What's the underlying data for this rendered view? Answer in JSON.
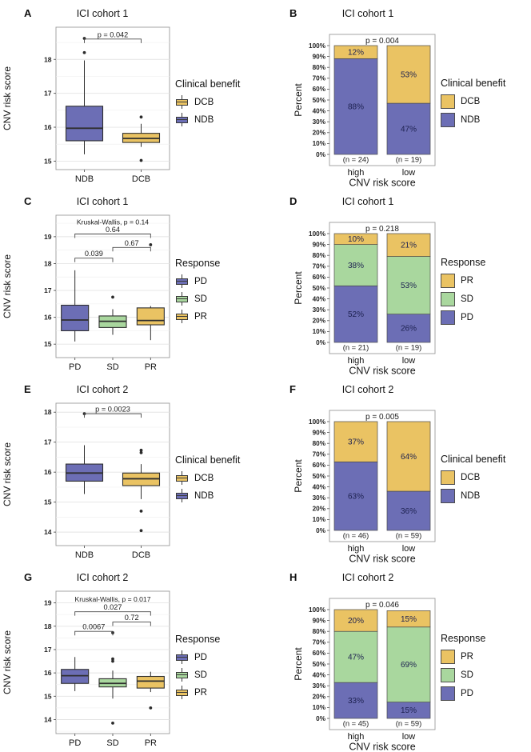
{
  "colors": {
    "NDB": "#6c6eb5",
    "DCB": "#eac363",
    "PD": "#6c6eb5",
    "SD": "#a9d79e",
    "PR": "#eac363",
    "box_stroke": "#2f2f2f",
    "bar_stroke": "#4a4a4a",
    "panel_border": "#9b9b9b",
    "grid_major": "#e4e4e4",
    "grid_minor": "#f0f0f0",
    "bar_label": "#1d2150",
    "text": "#141414"
  },
  "chart_data": [
    {
      "type": "boxplot",
      "panel_label": "A",
      "title": "ICI cohort 1",
      "ylabel": "CNV risk score",
      "ylim": [
        14.75,
        18.95
      ],
      "yticks": [
        15,
        16,
        17,
        18
      ],
      "categories": [
        "NDB",
        "DCB"
      ],
      "boxes": [
        {
          "group": "NDB",
          "color": "NDB",
          "q1": 15.6,
          "median": 15.97,
          "q3": 16.62,
          "whisker_low": 15.2,
          "whisker_high": 17.97,
          "outliers": [
            18.2,
            18.62
          ]
        },
        {
          "group": "DCB",
          "color": "DCB",
          "q1": 15.55,
          "median": 15.67,
          "q3": 15.82,
          "whisker_low": 15.42,
          "whisker_high": 16.1,
          "outliers": [
            15.02,
            16.3
          ]
        }
      ],
      "stat_text": null,
      "comparisons": [
        {
          "label": "p = 0.042",
          "from": 0,
          "to": 1,
          "y": 18.6
        }
      ],
      "legend": {
        "title": "Clinical benefit",
        "items": [
          {
            "label": "DCB",
            "color": "DCB"
          },
          {
            "label": "NDB",
            "color": "NDB"
          }
        ]
      }
    },
    {
      "type": "stacked_bar",
      "panel_label": "B",
      "title": "ICI cohort 1",
      "ylabel": "Percent",
      "xlabel": "CNV risk score",
      "p_label": "p = 0.004",
      "categories": [
        "high",
        "low"
      ],
      "n_labels": [
        "(n = 24)",
        "(n = 19)"
      ],
      "stack": [
        {
          "name": "NDB",
          "values": [
            88,
            47
          ]
        },
        {
          "name": "DCB",
          "values": [
            12,
            53
          ]
        }
      ],
      "legend": {
        "title": "Clinical benefit",
        "items": [
          {
            "label": "DCB",
            "color": "DCB"
          },
          {
            "label": "NDB",
            "color": "NDB"
          }
        ]
      }
    },
    {
      "type": "boxplot",
      "panel_label": "C",
      "title": "ICI cohort 1",
      "ylabel": "CNV risk score",
      "ylim": [
        14.5,
        19.8
      ],
      "yticks": [
        15,
        16,
        17,
        18,
        19
      ],
      "categories": [
        "PD",
        "SD",
        "PR"
      ],
      "boxes": [
        {
          "group": "PD",
          "color": "PD",
          "q1": 15.5,
          "median": 15.9,
          "q3": 16.45,
          "whisker_low": 15.1,
          "whisker_high": 17.75,
          "outliers": []
        },
        {
          "group": "SD",
          "color": "SD",
          "q1": 15.62,
          "median": 15.85,
          "q3": 16.05,
          "whisker_low": 15.35,
          "whisker_high": 16.3,
          "outliers": [
            16.75
          ]
        },
        {
          "group": "PR",
          "color": "PR",
          "q1": 15.72,
          "median": 15.88,
          "q3": 16.35,
          "whisker_low": 15.15,
          "whisker_high": 16.42,
          "outliers": [
            18.7
          ]
        }
      ],
      "stat_text": "Kruskal-Wallis, p = 0.14",
      "stat_y": 19.55,
      "comparisons": [
        {
          "label": "0.64",
          "from": 0,
          "to": 2,
          "y": 19.1
        },
        {
          "label": "0.67",
          "from": 1,
          "to": 2,
          "y": 18.6
        },
        {
          "label": "0.039",
          "from": 0,
          "to": 1,
          "y": 18.2
        }
      ],
      "legend": {
        "title": "Response",
        "items": [
          {
            "label": "PD",
            "color": "PD"
          },
          {
            "label": "SD",
            "color": "SD"
          },
          {
            "label": "PR",
            "color": "PR"
          }
        ]
      }
    },
    {
      "type": "stacked_bar",
      "panel_label": "D",
      "title": "ICI cohort 1",
      "ylabel": "Percent",
      "xlabel": "CNV risk score",
      "p_label": "p = 0.218",
      "categories": [
        "high",
        "low"
      ],
      "n_labels": [
        "(n = 21)",
        "(n = 19)"
      ],
      "stack": [
        {
          "name": "PD",
          "values": [
            52,
            26
          ]
        },
        {
          "name": "SD",
          "values": [
            38,
            53
          ]
        },
        {
          "name": "PR",
          "values": [
            10,
            21
          ]
        }
      ],
      "legend": {
        "title": "Response",
        "items": [
          {
            "label": "PR",
            "color": "PR"
          },
          {
            "label": "SD",
            "color": "SD"
          },
          {
            "label": "PD",
            "color": "PD"
          }
        ]
      }
    },
    {
      "type": "boxplot",
      "panel_label": "E",
      "title": "ICI cohort 2",
      "ylabel": "CNV risk score",
      "ylim": [
        13.55,
        18.3
      ],
      "yticks": [
        14,
        15,
        16,
        17,
        18
      ],
      "categories": [
        "NDB",
        "DCB"
      ],
      "boxes": [
        {
          "group": "NDB",
          "color": "NDB",
          "q1": 15.7,
          "median": 15.97,
          "q3": 16.27,
          "whisker_low": 15.27,
          "whisker_high": 16.9,
          "outliers": [
            17.95
          ]
        },
        {
          "group": "DCB",
          "color": "DCB",
          "q1": 15.55,
          "median": 15.78,
          "q3": 15.97,
          "whisker_low": 15.1,
          "whisker_high": 16.27,
          "outliers": [
            14.05,
            14.7,
            16.65,
            16.73
          ]
        }
      ],
      "stat_text": null,
      "comparisons": [
        {
          "label": "p = 0.0023",
          "from": 0,
          "to": 1,
          "y": 17.95
        }
      ],
      "legend": {
        "title": "Clinical benefit",
        "items": [
          {
            "label": "DCB",
            "color": "DCB"
          },
          {
            "label": "NDB",
            "color": "NDB"
          }
        ]
      }
    },
    {
      "type": "stacked_bar",
      "panel_label": "F",
      "title": "ICI cohort 2",
      "ylabel": "Percent",
      "xlabel": "CNV risk score",
      "p_label": "p = 0.005",
      "categories": [
        "high",
        "low"
      ],
      "n_labels": [
        "(n = 46)",
        "(n = 59)"
      ],
      "stack": [
        {
          "name": "NDB",
          "values": [
            63,
            36
          ]
        },
        {
          "name": "DCB",
          "values": [
            37,
            64
          ]
        }
      ],
      "legend": {
        "title": "Clinical benefit",
        "items": [
          {
            "label": "DCB",
            "color": "DCB"
          },
          {
            "label": "NDB",
            "color": "NDB"
          }
        ]
      }
    },
    {
      "type": "boxplot",
      "panel_label": "G",
      "title": "ICI cohort 2",
      "ylabel": "CNV risk score",
      "ylim": [
        13.4,
        19.5
      ],
      "yticks": [
        14,
        15,
        16,
        17,
        18,
        19
      ],
      "categories": [
        "PD",
        "SD",
        "PR"
      ],
      "boxes": [
        {
          "group": "PD",
          "color": "PD",
          "q1": 15.55,
          "median": 15.88,
          "q3": 16.15,
          "whisker_low": 15.22,
          "whisker_high": 16.68,
          "outliers": []
        },
        {
          "group": "SD",
          "color": "SD",
          "q1": 15.4,
          "median": 15.55,
          "q3": 15.75,
          "whisker_low": 14.9,
          "whisker_high": 16.1,
          "outliers": [
            13.85,
            16.5,
            16.6,
            17.72
          ]
        },
        {
          "group": "PR",
          "color": "PR",
          "q1": 15.35,
          "median": 15.65,
          "q3": 15.85,
          "whisker_low": 15.18,
          "whisker_high": 16.05,
          "outliers": [
            14.5
          ]
        }
      ],
      "stat_text": "Kruskal-Wallis, p = 0.017",
      "stat_y": 19.15,
      "comparisons": [
        {
          "label": "0.027",
          "from": 0,
          "to": 2,
          "y": 18.62
        },
        {
          "label": "0.72",
          "from": 1,
          "to": 2,
          "y": 18.18
        },
        {
          "label": "0.0067",
          "from": 0,
          "to": 1,
          "y": 17.78
        }
      ],
      "legend": {
        "title": "Response",
        "items": [
          {
            "label": "PD",
            "color": "PD"
          },
          {
            "label": "SD",
            "color": "SD"
          },
          {
            "label": "PR",
            "color": "PR"
          }
        ]
      }
    },
    {
      "type": "stacked_bar",
      "panel_label": "H",
      "title": "ICI cohort 2",
      "ylabel": "Percent",
      "xlabel": "CNV risk score",
      "p_label": "p = 0.046",
      "categories": [
        "high",
        "low"
      ],
      "n_labels": [
        "(n = 45)",
        "(n = 59)"
      ],
      "stack": [
        {
          "name": "PD",
          "values": [
            33,
            15
          ]
        },
        {
          "name": "SD",
          "values": [
            47,
            69
          ]
        },
        {
          "name": "PR",
          "values": [
            20,
            15
          ]
        }
      ],
      "legend": {
        "title": "Response",
        "items": [
          {
            "label": "PR",
            "color": "PR"
          },
          {
            "label": "SD",
            "color": "SD"
          },
          {
            "label": "PD",
            "color": "PD"
          }
        ]
      }
    }
  ]
}
